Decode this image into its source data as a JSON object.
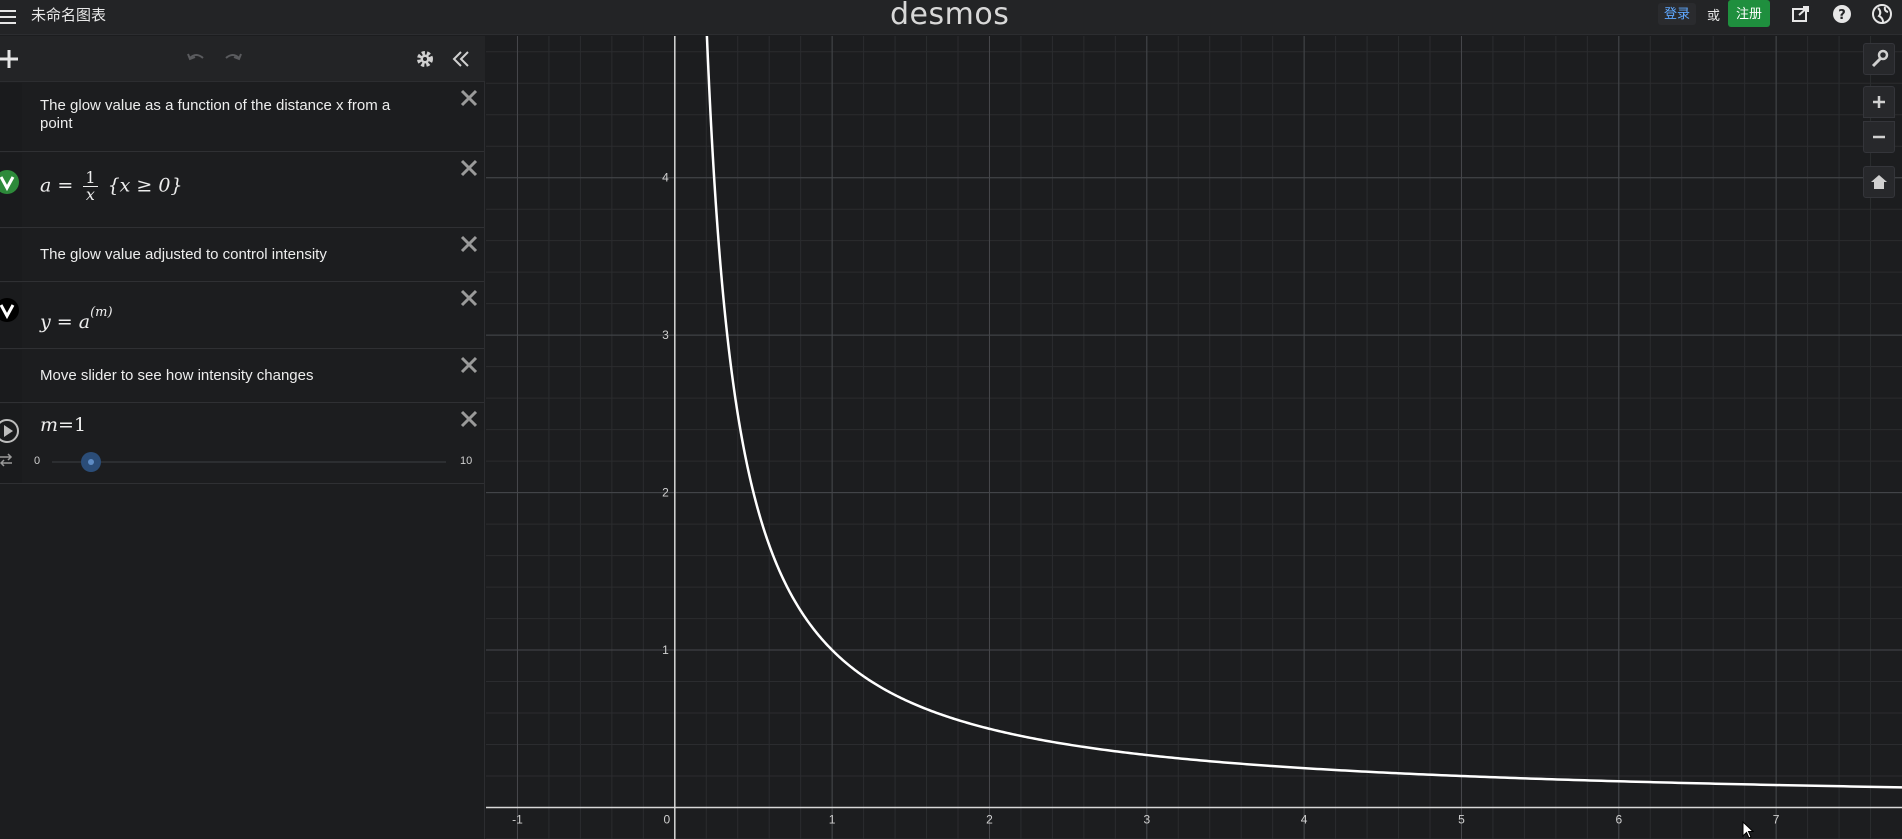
{
  "header": {
    "graph_title": "未命名图表",
    "brand": "desmos",
    "login_label": "登录",
    "or_label": "或",
    "signup_label": "注册"
  },
  "panel": {
    "expressions": [
      {
        "type": "note",
        "text": "The glow value as a function of the distance x from a point"
      },
      {
        "type": "expression",
        "lhs": "a",
        "eq": "=",
        "frac_num": "1",
        "frac_den": "x",
        "restriction": "{x ≥ 0}",
        "color": "#2d8a3a"
      },
      {
        "type": "note",
        "text": "The glow value adjusted to control intensity"
      },
      {
        "type": "expression",
        "lhs": "y",
        "eq": "=",
        "base": "a",
        "exponent": "(m)",
        "color": "#000000"
      },
      {
        "type": "note",
        "text": "Move slider to see how intensity changes"
      },
      {
        "type": "slider",
        "lhs": "m",
        "eq": "=",
        "value_text": "1",
        "min_label": "0",
        "max_label": "10",
        "value": 1,
        "min": 0,
        "max": 10
      }
    ]
  },
  "chart_data": {
    "type": "line",
    "x_ticks": [
      "-1",
      "0",
      "1",
      "2",
      "3",
      "4",
      "5",
      "6",
      "7"
    ],
    "y_ticks": [
      "1",
      "2",
      "3",
      "4"
    ],
    "xlim": [
      -1.2,
      7.8
    ],
    "ylim": [
      -0.2,
      4.9
    ],
    "grid": true,
    "series": [
      {
        "expr": "y = 1/x",
        "color": "#ffffff",
        "domain": [
          0.2,
          7.8
        ]
      }
    ]
  },
  "colors": {
    "background": "#1c1d1f",
    "accent_green": "#1f8f3e",
    "link_blue": "#5fa8ff"
  }
}
